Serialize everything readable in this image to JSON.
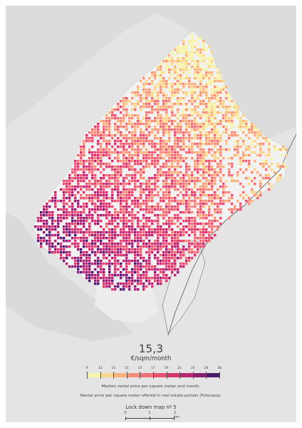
{
  "map": {
    "big_value": "15,3",
    "unit": "€/sqm/month",
    "legend": {
      "ticks": [
        "9",
        "13",
        "14",
        "15",
        "16",
        "17",
        "19",
        "21",
        "24",
        "28",
        "38"
      ],
      "colors": [
        "#f7f3a8",
        "#fad58c",
        "#f9b27d",
        "#f58f79",
        "#ef6f76",
        "#e7516f",
        "#d8356b",
        "#b8276e",
        "#8a1f6e",
        "#4a1c6b"
      ]
    },
    "caption_line1": "Median rental price per square meter and month.",
    "caption_line2": "Rental price per square meter offered in real estate portals (Fotocasa).",
    "caption_line3": "Lock down map nº 5",
    "scale": {
      "labels": [
        "0",
        "1",
        "2 km"
      ]
    },
    "colors": {
      "background": "#e4e4e4",
      "neighbouring_area": "#d9d9d9",
      "city_base": "#f2f2f2",
      "water": "#e4e4e4"
    }
  }
}
